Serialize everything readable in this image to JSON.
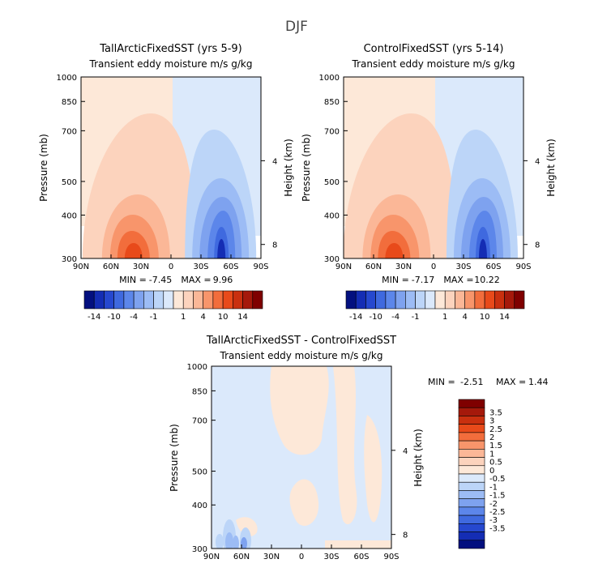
{
  "page_title": "DJF",
  "colors": {
    "warm": [
      "#fde8d8",
      "#fcd3bd",
      "#fbb797",
      "#f8956b",
      "#f26d3c",
      "#e84a1a",
      "#c9300f",
      "#a5190b",
      "#7f0000"
    ],
    "cool": [
      "#dbe9fb",
      "#bcd5f8",
      "#9cbcf5",
      "#7ea2ef",
      "#5c86ea",
      "#3f69df",
      "#2648cf",
      "#142db4",
      "#03107f"
    ]
  },
  "chart_data": [
    {
      "type": "heatmap",
      "id": "tall",
      "title": "TallArcticFixedSST (yrs 5-9)",
      "subtitle": "Transient eddy moisture m/s g/kg",
      "ylabel": "Pressure (mb)",
      "y2label": "Height (km)",
      "x_ticks": [
        "90N",
        "60N",
        "30N",
        "0",
        "30S",
        "60S",
        "90S"
      ],
      "y_ticks": [
        "300",
        "400",
        "500",
        "700",
        "850",
        "1000"
      ],
      "y2_ticks": [
        "8",
        "4"
      ],
      "stats": {
        "min_label": "MIN =",
        "min": "-7.45",
        "max_label": "MAX =",
        "max": "9.96"
      },
      "colorbar_labels": [
        "-14",
        "-10",
        "-4",
        "-1",
        "1",
        "4",
        "10",
        "14"
      ],
      "extrema": {
        "warm_peak_lat": 35,
        "cool_peak_lat": -48
      }
    },
    {
      "type": "heatmap",
      "id": "control",
      "title": "ControlFixedSST (yrs 5-14)",
      "subtitle": "Transient eddy moisture m/s g/kg",
      "ylabel": "Pressure (mb)",
      "y2label": "Height (km)",
      "x_ticks": [
        "90N",
        "60N",
        "30N",
        "0",
        "30S",
        "60S",
        "90S"
      ],
      "y_ticks": [
        "300",
        "400",
        "500",
        "700",
        "850",
        "1000"
      ],
      "y2_ticks": [
        "8",
        "4"
      ],
      "stats": {
        "min_label": "MIN =",
        "min": "-7.17",
        "max_label": "MAX =",
        "max": "10.22"
      },
      "colorbar_labels": [
        "-14",
        "-10",
        "-4",
        "-1",
        "1",
        "4",
        "10",
        "14"
      ],
      "extrema": {
        "warm_peak_lat": 37,
        "cool_peak_lat": -47
      }
    },
    {
      "type": "heatmap",
      "id": "diff",
      "title": "TallArcticFixedSST - ControlFixedSST",
      "subtitle": "Transient eddy moisture m/s g/kg",
      "ylabel": "Pressure (mb)",
      "y2label": "Height (km)",
      "x_ticks": [
        "90N",
        "60N",
        "30N",
        "0",
        "30S",
        "60S",
        "90S"
      ],
      "y_ticks": [
        "300",
        "400",
        "500",
        "700",
        "850",
        "1000"
      ],
      "y2_ticks": [
        "8",
        "4"
      ],
      "stats": {
        "min_label": "MIN =",
        "min": "-2.51",
        "max_label": "MAX =",
        "max": "1.44"
      },
      "colorbar_labels": [
        "3.5",
        "3",
        "2.5",
        "2",
        "1.5",
        "1",
        "0.5",
        "0",
        "-0.5",
        "-1",
        "-1.5",
        "-2",
        "-2.5",
        "-3",
        "-3.5"
      ]
    }
  ]
}
